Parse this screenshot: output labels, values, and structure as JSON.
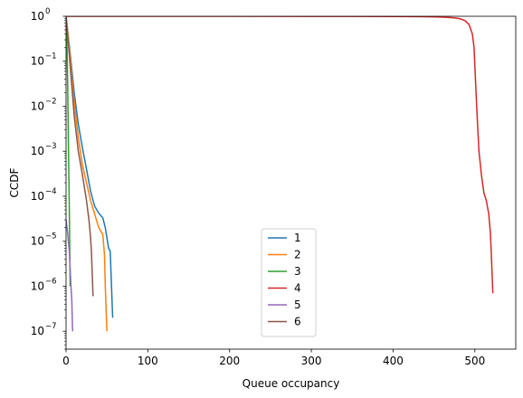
{
  "chart_data": {
    "type": "line",
    "title": "",
    "xlabel": "Queue occupancy",
    "ylabel": "CCDF",
    "yscale": "log",
    "xlim": [
      0,
      550
    ],
    "ylim": [
      4e-08,
      1
    ],
    "x_ticks": [
      0,
      100,
      200,
      300,
      400,
      500
    ],
    "x_tick_labels": [
      "0",
      "100",
      "200",
      "300",
      "400",
      "500"
    ],
    "y_ticks": [
      1e-07,
      1e-06,
      1e-05,
      0.0001,
      0.001,
      0.01,
      0.1,
      1
    ],
    "y_tick_labels": [
      "10",
      "10",
      "10",
      "10",
      "10",
      "10",
      "10",
      "10"
    ],
    "y_tick_exponents": [
      "−7",
      "−6",
      "−5",
      "−4",
      "−3",
      "−2",
      "−1",
      "0"
    ],
    "grid": false,
    "legend_placement": "lower-center",
    "series": [
      {
        "name": "1",
        "color": "#1f77b4",
        "x": [
          0,
          5,
          10,
          15,
          20,
          25,
          30,
          35,
          40,
          45,
          48,
          50,
          52,
          54,
          55,
          57
        ],
        "y": [
          1,
          0.15,
          0.02,
          0.004,
          0.0012,
          0.0004,
          0.00013,
          6e-05,
          4.2e-05,
          3.3e-05,
          2e-05,
          1.2e-05,
          7e-06,
          6e-06,
          2e-06,
          2e-07
        ]
      },
      {
        "name": "2",
        "color": "#ff7f0e",
        "x": [
          0,
          5,
          10,
          15,
          20,
          25,
          30,
          35,
          40,
          45,
          47,
          48,
          49,
          50
        ],
        "y": [
          1,
          0.12,
          0.012,
          0.002,
          0.0005,
          0.0002,
          8e-05,
          4e-05,
          2e-05,
          1.4e-05,
          5e-06,
          1e-06,
          3e-07,
          1e-07
        ]
      },
      {
        "name": "3",
        "color": "#2ca02c",
        "x": [
          0,
          1,
          2,
          3,
          4,
          5
        ],
        "y": [
          1,
          0.3,
          0.03,
          0.001,
          5e-05,
          1e-06
        ]
      },
      {
        "name": "4",
        "color": "#d62728",
        "x": [
          0,
          100,
          200,
          300,
          350,
          400,
          430,
          450,
          465,
          475,
          482,
          488,
          493,
          497,
          499,
          501,
          503,
          505,
          508,
          511,
          514,
          517,
          519,
          520,
          521,
          522
        ],
        "y": [
          1,
          0.999,
          0.998,
          0.995,
          0.993,
          0.99,
          0.985,
          0.97,
          0.95,
          0.92,
          0.88,
          0.8,
          0.65,
          0.4,
          0.2,
          0.03,
          0.005,
          0.001,
          0.0003,
          0.00012,
          8e-05,
          4e-05,
          1.5e-05,
          6e-06,
          2e-06,
          7e-07
        ]
      },
      {
        "name": "5",
        "color": "#9467bd",
        "x": [
          0,
          2,
          4,
          6,
          7,
          8
        ],
        "y": [
          3e-05,
          1.5e-05,
          6e-06,
          1e-06,
          5e-07,
          1e-07
        ]
      },
      {
        "name": "6",
        "color": "#8c564b",
        "x": [
          0,
          5,
          10,
          15,
          20,
          25,
          28,
          30,
          31,
          32,
          33
        ],
        "y": [
          1,
          0.08,
          0.006,
          0.001,
          0.0003,
          8e-05,
          3e-05,
          1.2e-05,
          6e-06,
          2e-06,
          6e-07
        ]
      }
    ]
  }
}
